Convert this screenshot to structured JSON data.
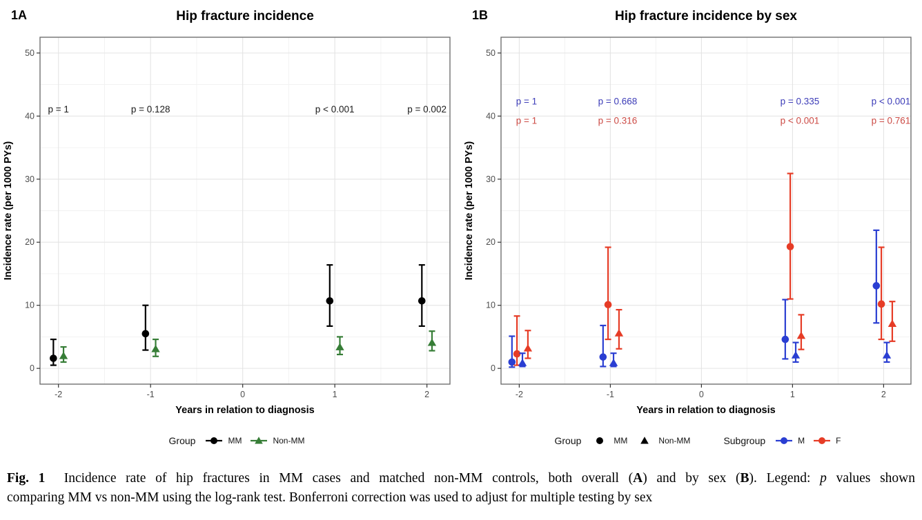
{
  "colors": {
    "mm_black": "#000000",
    "nonmm_green": "#367d36",
    "male_blue": "#2a3ed2",
    "female_red": "#e63c26",
    "p_blue": "#3d3db8",
    "p_red": "#cc4b45",
    "p_black": "#1a1a1a",
    "grid_major": "#e4e4e4",
    "grid_minor": "#f1f1f1",
    "panel_border": "#707070",
    "tick_label": "#4d4d4d"
  },
  "chart_data": [
    {
      "type": "scatter",
      "panel_label": "1A",
      "title": "Hip fracture incidence",
      "xlabel": "Years in relation to diagnosis",
      "ylabel": "Incidence rate (per 1000 PYs)",
      "xlim": [
        -2.2,
        2.25
      ],
      "ylim": [
        -2.5,
        52.5
      ],
      "x_ticks": [
        -2,
        -1,
        0,
        1,
        2
      ],
      "y_ticks": [
        0,
        10,
        20,
        30,
        40,
        50
      ],
      "grid": true,
      "series": [
        {
          "name": "MM",
          "marker": "circle",
          "color": "#000000",
          "x_offset": -0.055,
          "points": [
            {
              "x": -2,
              "y": 1.6,
              "lo": 0.5,
              "hi": 4.6
            },
            {
              "x": -1,
              "y": 5.5,
              "lo": 2.9,
              "hi": 10.0
            },
            {
              "x": 1,
              "y": 10.7,
              "lo": 6.7,
              "hi": 16.4
            },
            {
              "x": 2,
              "y": 10.7,
              "lo": 6.7,
              "hi": 16.4
            }
          ]
        },
        {
          "name": "Non-MM",
          "marker": "triangle",
          "color": "#367d36",
          "x_offset": 0.055,
          "points": [
            {
              "x": -2,
              "y": 2.0,
              "lo": 1.0,
              "hi": 3.4
            },
            {
              "x": -1,
              "y": 3.1,
              "lo": 1.9,
              "hi": 4.6
            },
            {
              "x": 1,
              "y": 3.4,
              "lo": 2.2,
              "hi": 5.0
            },
            {
              "x": 2,
              "y": 4.1,
              "lo": 2.8,
              "hi": 5.9
            }
          ]
        }
      ],
      "annotations": [
        {
          "x": -2,
          "y": 41,
          "text": "p = 1",
          "color": "#1a1a1a"
        },
        {
          "x": -1,
          "y": 41,
          "text": "p = 0.128",
          "color": "#1a1a1a"
        },
        {
          "x": 1,
          "y": 41,
          "text": "p < 0.001",
          "color": "#1a1a1a"
        },
        {
          "x": 2,
          "y": 41,
          "text": "p = 0.002",
          "color": "#1a1a1a"
        }
      ],
      "legend_groups": [
        {
          "title": "Group",
          "items": [
            {
              "label": "MM",
              "marker": "circle",
              "color": "#000000",
              "line": true
            },
            {
              "label": "Non-MM",
              "marker": "triangle",
              "color": "#367d36",
              "line": true
            }
          ]
        }
      ]
    },
    {
      "type": "scatter",
      "panel_label": "1B",
      "title": "Hip fracture incidence by sex",
      "xlabel": "Years in relation to diagnosis",
      "ylabel": "Incidence rate (per 1000 PYs)",
      "xlim": [
        -2.2,
        2.3
      ],
      "ylim": [
        -2.5,
        52.5
      ],
      "x_ticks": [
        -2,
        -1,
        0,
        1,
        2
      ],
      "y_ticks": [
        0,
        10,
        20,
        30,
        40,
        50
      ],
      "grid": true,
      "series": [
        {
          "name": "M MM",
          "marker": "circle",
          "color": "#2a3ed2",
          "x_offset": -0.08,
          "points": [
            {
              "x": -2,
              "y": 1.0,
              "lo": 0.2,
              "hi": 5.1
            },
            {
              "x": -1,
              "y": 1.8,
              "lo": 0.3,
              "hi": 6.8
            },
            {
              "x": 1,
              "y": 4.6,
              "lo": 1.5,
              "hi": 10.9
            },
            {
              "x": 2,
              "y": 13.1,
              "lo": 7.2,
              "hi": 21.9
            }
          ]
        },
        {
          "name": "F MM",
          "marker": "circle",
          "color": "#e63c26",
          "x_offset": -0.025,
          "points": [
            {
              "x": -2,
              "y": 2.3,
              "lo": 0.5,
              "hi": 8.3
            },
            {
              "x": -1,
              "y": 10.1,
              "lo": 4.6,
              "hi": 19.2
            },
            {
              "x": 1,
              "y": 19.3,
              "lo": 11.0,
              "hi": 30.9
            },
            {
              "x": 2,
              "y": 10.2,
              "lo": 4.6,
              "hi": 19.2
            }
          ]
        },
        {
          "name": "M Non-MM",
          "marker": "triangle",
          "color": "#2a3ed2",
          "x_offset": 0.035,
          "points": [
            {
              "x": -2,
              "y": 0.9,
              "lo": 0.3,
              "hi": 2.4
            },
            {
              "x": -1,
              "y": 0.9,
              "lo": 0.3,
              "hi": 2.4
            },
            {
              "x": 1,
              "y": 2.1,
              "lo": 1.0,
              "hi": 4.1
            },
            {
              "x": 2,
              "y": 2.1,
              "lo": 1.0,
              "hi": 4.1
            }
          ]
        },
        {
          "name": "F Non-MM",
          "marker": "triangle",
          "color": "#e63c26",
          "x_offset": 0.095,
          "points": [
            {
              "x": -2,
              "y": 3.2,
              "lo": 1.6,
              "hi": 6.0
            },
            {
              "x": -1,
              "y": 5.6,
              "lo": 3.1,
              "hi": 9.3
            },
            {
              "x": 1,
              "y": 5.2,
              "lo": 3.0,
              "hi": 8.5
            },
            {
              "x": 2,
              "y": 7.1,
              "lo": 4.3,
              "hi": 10.6
            }
          ]
        }
      ],
      "annotations": [
        {
          "x": -1.92,
          "y": 42.3,
          "text": "p = 1",
          "color": "#3d3db8"
        },
        {
          "x": -0.92,
          "y": 42.3,
          "text": "p = 0.668",
          "color": "#3d3db8"
        },
        {
          "x": 1.08,
          "y": 42.3,
          "text": "p = 0.335",
          "color": "#3d3db8"
        },
        {
          "x": 2.08,
          "y": 42.3,
          "text": "p < 0.001",
          "color": "#3d3db8"
        },
        {
          "x": -1.92,
          "y": 39.2,
          "text": "p = 1",
          "color": "#cc4b45"
        },
        {
          "x": -0.92,
          "y": 39.2,
          "text": "p = 0.316",
          "color": "#cc4b45"
        },
        {
          "x": 1.08,
          "y": 39.2,
          "text": "p < 0.001",
          "color": "#cc4b45"
        },
        {
          "x": 2.08,
          "y": 39.2,
          "text": "p = 0.761",
          "color": "#cc4b45"
        }
      ],
      "legend_groups": [
        {
          "title": "Group",
          "items": [
            {
              "label": "MM",
              "marker": "circle",
              "color": "#000000",
              "line": false
            },
            {
              "label": "Non-MM",
              "marker": "triangle",
              "color": "#000000",
              "line": false
            }
          ]
        },
        {
          "title": "Subgroup",
          "items": [
            {
              "label": "M",
              "marker": "circle",
              "color": "#2a3ed2",
              "line": true
            },
            {
              "label": "F",
              "marker": "circle",
              "color": "#e63c26",
              "line": true
            }
          ]
        }
      ]
    }
  ],
  "caption": {
    "lines": [
      [
        {
          "t": "Fig. 1",
          "b": true
        },
        {
          "t": "  Incidence rate of hip fractures in MM cases and matched non-MM controls, both overall ("
        },
        {
          "t": "A",
          "b": true
        },
        {
          "t": ") and by sex ("
        },
        {
          "t": "B",
          "b": true
        },
        {
          "t": "). Legend: "
        },
        {
          "t": "p",
          "i": true
        },
        {
          "t": " values shown"
        }
      ],
      [
        {
          "t": "comparing MM vs non-MM using the log-rank test. Bonferroni correction was used to adjust for multiple testing by sex"
        }
      ]
    ]
  }
}
